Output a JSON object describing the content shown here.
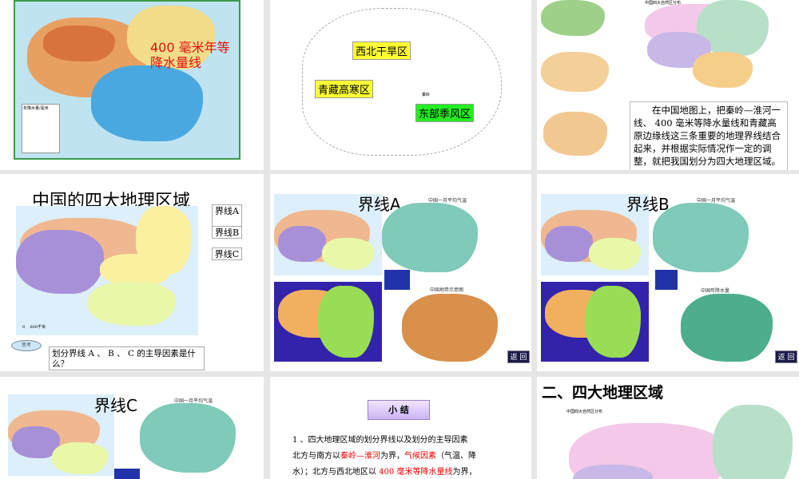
{
  "slides": [
    {
      "annotation": "400 毫米年等\n降水量线",
      "legend_title": "年降水量/毫米",
      "legend_values": [
        "1600",
        "800",
        "400",
        "200",
        "50"
      ],
      "colors": {
        "annotation": "#e01010"
      }
    },
    {
      "labels": [
        "西北干旱区",
        "青藏高寒区",
        "东部季风区"
      ],
      "small_labels": [
        "秦岭"
      ],
      "colors": {
        "yellow": "#ffff33",
        "green": "#22ee22"
      }
    },
    {
      "map_title": "中国四大自然区分布",
      "text": "在中国地图上，把秦岭—淮河一线、 400 毫米等降水量线和青藏高原边缘线这三条重要的地理界线结合起来，并根据实际情况作一定的调整，就把我国划分为四大地理区域。"
    },
    {
      "title": "中国的四大地理区域",
      "buttons": [
        "界线A",
        "界线B",
        "界线C"
      ],
      "think": "思考",
      "question": "划分界线 A 、 B 、 C 的主导因素是什么？",
      "scale": "0    600千米"
    },
    {
      "title": "界线A",
      "map_labels": [
        "中国一月平均气温",
        "中国地势示意图"
      ],
      "back": "返 回"
    },
    {
      "title": "界线B",
      "map_labels": [
        "中国一月平均气温",
        "中国年降水量"
      ],
      "back": "返 回"
    },
    {
      "title": "界线C",
      "map_labels": [
        "中国一月平均气温"
      ]
    },
    {
      "banner": "小 结",
      "line1": "1 、四大地理区域的划分界线以及划分的主导因素",
      "line2_a": "北方与南方以",
      "line2_b": "秦岭—淮河",
      "line2_c": "为界，",
      "line2_d": "气候因素",
      "line2_e": "（气温、降",
      "line3_a": "水）；北方与西北地区以 ",
      "line3_b": "400 毫米等降水量线",
      "line3_c": "为界，"
    },
    {
      "title": "二、四大地理区域",
      "map_title": "中国四大自然区分布"
    }
  ]
}
